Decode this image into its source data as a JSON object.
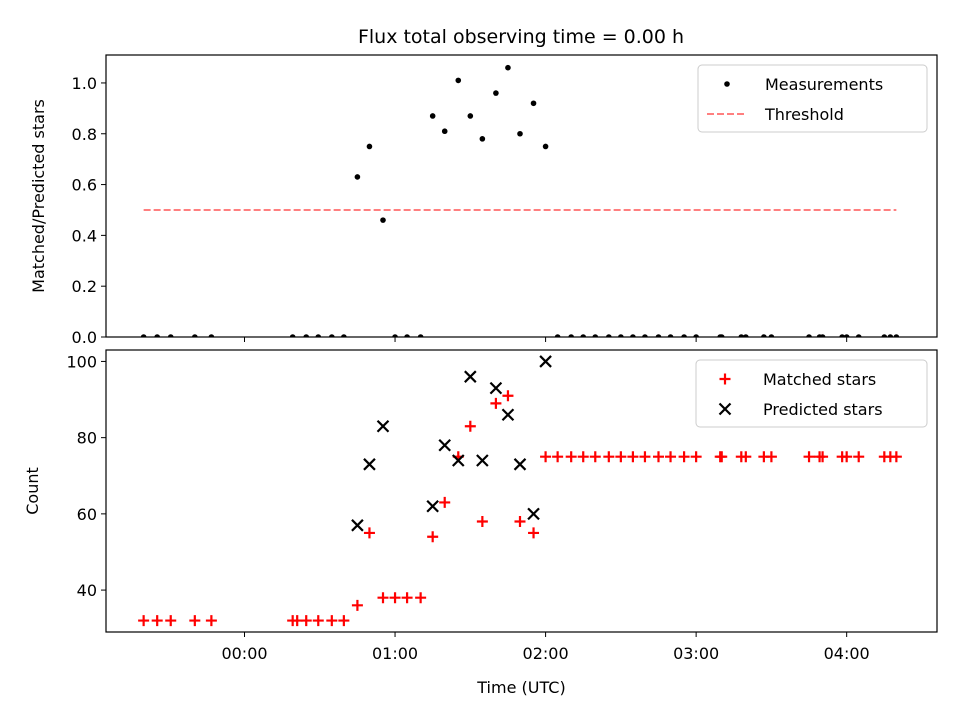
{
  "figure": {
    "title": "Flux total observing time = 0.00 h"
  },
  "chart_data": [
    {
      "type": "scatter",
      "title": "Flux total observing time = 0.00 h",
      "xlabel": "",
      "ylabel": "Matched/Predicted stars",
      "xlim": [
        -0.92,
        4.6
      ],
      "ylim": [
        0,
        1.11
      ],
      "yticks": [
        0.0,
        0.2,
        0.4,
        0.6,
        0.8,
        1.0
      ],
      "ytick_labels": [
        "0.0",
        "0.2",
        "0.4",
        "0.6",
        "0.8",
        "1.0"
      ],
      "legend_position": "top-right",
      "legend": {
        "measurements": "Measurements",
        "threshold": "Threshold"
      },
      "series": [
        {
          "name": "Measurements",
          "color": "#000000",
          "marker": "dot",
          "x": [
            -0.67,
            -0.58,
            -0.49,
            -0.33,
            -0.22,
            0.32,
            0.41,
            0.49,
            0.58,
            0.66,
            0.75,
            0.83,
            0.92,
            1.0,
            1.08,
            1.17,
            1.25,
            1.33,
            1.42,
            1.5,
            1.58,
            1.67,
            1.75,
            1.83,
            1.92,
            2.0,
            2.08,
            2.17,
            2.25,
            2.33,
            2.42,
            2.5,
            2.58,
            2.66,
            2.75,
            2.83,
            2.92,
            3.0,
            3.16,
            3.17,
            3.3,
            3.33,
            3.45,
            3.5,
            3.75,
            3.82,
            3.84,
            3.97,
            4.0,
            4.08,
            4.25,
            4.29,
            4.33
          ],
          "y": [
            0,
            0,
            0,
            0,
            0,
            0,
            0,
            0,
            0,
            0,
            0.63,
            0.75,
            0.46,
            0,
            0,
            0,
            0.87,
            0.81,
            1.01,
            0.87,
            0.78,
            0.96,
            1.06,
            0.8,
            0.92,
            0.75,
            0,
            0,
            0,
            0,
            0,
            0,
            0,
            0,
            0,
            0,
            0,
            0,
            0,
            0,
            0,
            0,
            0,
            0,
            0,
            0,
            0,
            0,
            0,
            0,
            0,
            0,
            0
          ]
        },
        {
          "name": "Threshold",
          "color": "#ff7f7f",
          "line": "dashed",
          "x": [
            -0.67,
            4.33
          ],
          "y": [
            0.5,
            0.5
          ]
        }
      ]
    },
    {
      "type": "scatter",
      "title": "",
      "xlabel": "Time (UTC)",
      "ylabel": "Count",
      "xlim": [
        -0.92,
        4.6
      ],
      "ylim": [
        29,
        103
      ],
      "xticks": [
        0,
        1,
        2,
        3,
        4
      ],
      "xtick_labels": [
        "00:00",
        "01:00",
        "02:00",
        "03:00",
        "04:00"
      ],
      "yticks": [
        40,
        60,
        80,
        100
      ],
      "ytick_labels": [
        "40",
        "60",
        "80",
        "100"
      ],
      "legend_position": "top-right",
      "legend": {
        "matched": "Matched stars",
        "predicted": "Predicted stars"
      },
      "series": [
        {
          "name": "Matched stars",
          "color": "#ff0000",
          "marker": "plus",
          "x": [
            -0.67,
            -0.58,
            -0.49,
            -0.33,
            -0.22,
            0.32,
            0.35,
            0.41,
            0.49,
            0.58,
            0.66,
            0.75,
            0.83,
            0.92,
            1.0,
            1.08,
            1.17,
            1.25,
            1.33,
            1.42,
            1.5,
            1.58,
            1.67,
            1.75,
            1.83,
            1.92,
            2.0,
            2.08,
            2.17,
            2.25,
            2.33,
            2.42,
            2.5,
            2.58,
            2.66,
            2.75,
            2.83,
            2.92,
            3.0,
            3.16,
            3.17,
            3.3,
            3.33,
            3.45,
            3.5,
            3.75,
            3.82,
            3.84,
            3.97,
            4.0,
            4.08,
            4.25,
            4.29,
            4.33
          ],
          "y": [
            32,
            32,
            32,
            32,
            32,
            32,
            32,
            32,
            32,
            32,
            32,
            36,
            55,
            38,
            38,
            38,
            38,
            54,
            63,
            75,
            83,
            58,
            89,
            91,
            58,
            55,
            75,
            75,
            75,
            75,
            75,
            75,
            75,
            75,
            75,
            75,
            75,
            75,
            75,
            75,
            75,
            75,
            75,
            75,
            75,
            75,
            75,
            75,
            75,
            75,
            75,
            75,
            75,
            75
          ]
        },
        {
          "name": "Predicted stars",
          "color": "#000000",
          "marker": "x",
          "x": [
            0.75,
            0.83,
            0.92,
            1.25,
            1.33,
            1.42,
            1.5,
            1.58,
            1.67,
            1.75,
            1.83,
            1.92,
            2.0
          ],
          "y": [
            57,
            73,
            83,
            62,
            78,
            74,
            96,
            74,
            93,
            86,
            73,
            60,
            100
          ]
        }
      ]
    }
  ]
}
